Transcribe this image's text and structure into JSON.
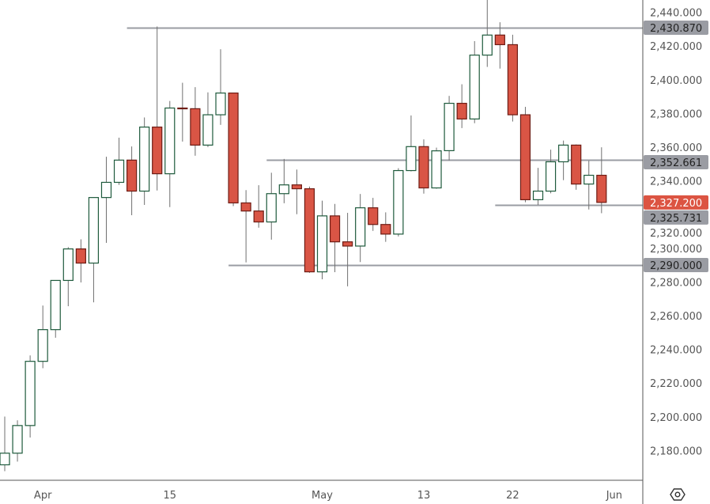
{
  "chart_data": {
    "type": "candlestick",
    "title": "",
    "ylim": [
      2165,
      2447
    ],
    "y_ticks": [
      "2,180.000",
      "2,200.000",
      "2,220.000",
      "2,240.000",
      "2,260.000",
      "2,280.000",
      "2,300.000",
      "2,320.000",
      "2,340.000",
      "2,360.000",
      "2,380.000",
      "2,400.000",
      "2,420.000",
      "2,440.000"
    ],
    "y_tick_values": [
      2180,
      2200,
      2220,
      2240,
      2260,
      2280,
      2300,
      2320,
      2340,
      2360,
      2380,
      2400,
      2420,
      2440
    ],
    "x_ticks": [
      {
        "label": "Apr",
        "index": 3
      },
      {
        "label": "15",
        "index": 13
      },
      {
        "label": "May",
        "index": 25
      },
      {
        "label": "13",
        "index": 33
      },
      {
        "label": "22",
        "index": 40
      },
      {
        "label": "Jun",
        "index": 48
      }
    ],
    "candles": [
      [
        2171.5,
        2200.1,
        2167.7,
        2178.4
      ],
      [
        2178.4,
        2197.9,
        2173.4,
        2194.8
      ],
      [
        2194.8,
        2236.4,
        2187.7,
        2232.9
      ],
      [
        2232.9,
        2266.0,
        2228.8,
        2251.7
      ],
      [
        2251.7,
        2281.0,
        2246.9,
        2280.9
      ],
      [
        2280.9,
        2300.7,
        2265.6,
        2299.6
      ],
      [
        2299.6,
        2305.3,
        2279.7,
        2291.2
      ],
      [
        2291.2,
        2330.1,
        2267.9,
        2330.1
      ],
      [
        2330.1,
        2354.3,
        2303.2,
        2339.1
      ],
      [
        2339.1,
        2365.6,
        2337.6,
        2352.3
      ],
      [
        2352.3,
        2360.4,
        2319.6,
        2333.9
      ],
      [
        2333.9,
        2377.6,
        2325.7,
        2371.9
      ],
      [
        2371.9,
        2431.6,
        2334.3,
        2344.2
      ],
      [
        2344.2,
        2387.4,
        2324.4,
        2383.2
      ],
      [
        2383.2,
        2398.2,
        2363.3,
        2383.0
      ],
      [
        2382.8,
        2395.6,
        2354.9,
        2361.2
      ],
      [
        2361.2,
        2392.5,
        2360.0,
        2379.2
      ],
      [
        2379.2,
        2418.1,
        2373.2,
        2392.1
      ],
      [
        2392.1,
        2392.1,
        2325.0,
        2326.9
      ],
      [
        2326.9,
        2334.5,
        2291.6,
        2322.1
      ],
      [
        2322.1,
        2337.4,
        2312.2,
        2315.6
      ],
      [
        2315.6,
        2344.8,
        2305.1,
        2332.4
      ],
      [
        2332.4,
        2353.0,
        2326.7,
        2337.6
      ],
      [
        2337.6,
        2346.7,
        2320.2,
        2335.3
      ],
      [
        2335.3,
        2336.6,
        2285.4,
        2286.0
      ],
      [
        2286.0,
        2328.2,
        2281.6,
        2319.2
      ],
      [
        2319.2,
        2326.3,
        2285.8,
        2303.8
      ],
      [
        2303.8,
        2321.0,
        2277.4,
        2301.3
      ],
      [
        2301.3,
        2332.2,
        2291.8,
        2324.0
      ],
      [
        2324.0,
        2329.9,
        2310.3,
        2314.1
      ],
      [
        2314.1,
        2321.3,
        2303.8,
        2308.4
      ],
      [
        2308.4,
        2347.5,
        2307.0,
        2346.1
      ],
      [
        2346.1,
        2378.8,
        2345.6,
        2360.3
      ],
      [
        2360.3,
        2364.6,
        2332.4,
        2335.8
      ],
      [
        2335.8,
        2359.7,
        2335.3,
        2357.8
      ],
      [
        2357.9,
        2390.4,
        2352.1,
        2386.0
      ],
      [
        2386.0,
        2397.3,
        2371.3,
        2376.7
      ],
      [
        2376.7,
        2422.9,
        2374.2,
        2414.6
      ],
      [
        2414.6,
        2447.3,
        2407.6,
        2426.5
      ],
      [
        2426.5,
        2434.1,
        2406.6,
        2420.8
      ],
      [
        2420.8,
        2426.7,
        2375.2,
        2379.2
      ],
      [
        2379.2,
        2383.9,
        2327.3,
        2328.8
      ],
      [
        2328.8,
        2347.7,
        2325.7,
        2333.9
      ],
      [
        2333.9,
        2358.5,
        2332.6,
        2351.3
      ],
      [
        2351.3,
        2363.9,
        2340.4,
        2361.2
      ],
      [
        2361.2,
        2361.6,
        2334.7,
        2338.1
      ],
      [
        2338.1,
        2351.9,
        2323.0,
        2343.3
      ],
      [
        2343.3,
        2359.9,
        2320.8,
        2327.2
      ]
    ],
    "candle_fields": [
      "open",
      "high",
      "low",
      "close"
    ],
    "levels": [
      {
        "value": 2430.87,
        "label": "2,430.870",
        "start_index": 10
      },
      {
        "value": 2352.661,
        "label": "2,352.661",
        "start_index": 21
      },
      {
        "value": 2325.731,
        "label": "2,325.731",
        "start_index": 39
      },
      {
        "value": 2290.0,
        "label": "2,290.000",
        "start_index": 18
      }
    ],
    "current_price": {
      "value": 2327.2,
      "label": "2,327.200"
    },
    "colors": {
      "up_body": "#ffffff",
      "up_border": "#1e5a3c",
      "down_body": "#d95545",
      "down_border": "#6e1c14",
      "wick": "#6f6f6f",
      "level": "#9a9ca3",
      "level_box": "#9a9ca3",
      "current_box": "#dc5442"
    }
  },
  "settings_icon": "settings-hexagon-icon"
}
